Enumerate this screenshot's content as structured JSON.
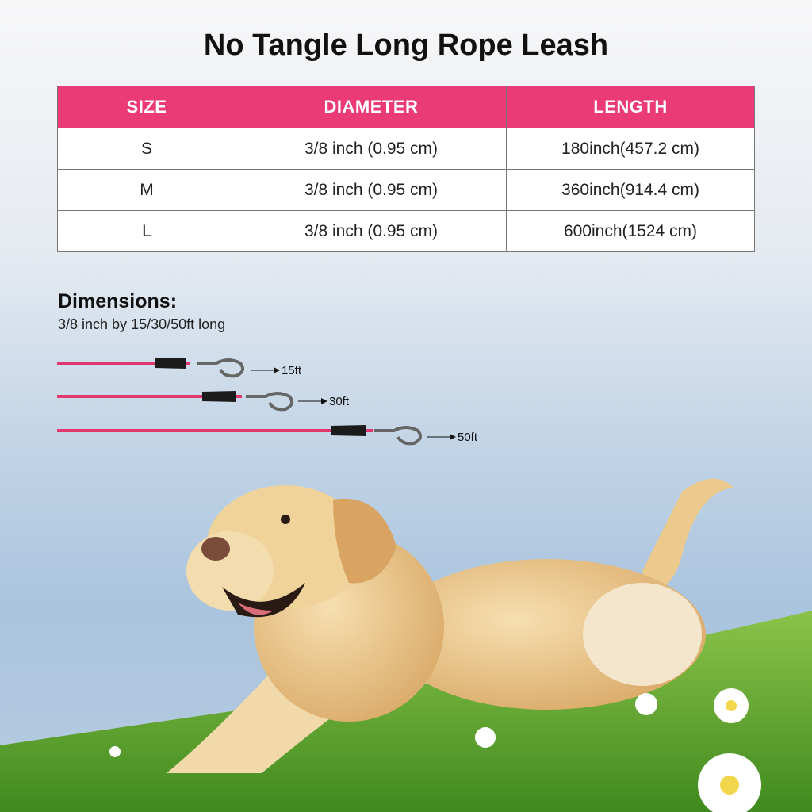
{
  "header": {
    "title": "No Tangle Long Rope Leash"
  },
  "table": {
    "columns": [
      "SIZE",
      "DIAMETER",
      "LENGTH"
    ],
    "rows": [
      [
        "S",
        "3/8 inch (0.95 cm)",
        "180inch(457.2 cm)"
      ],
      [
        "M",
        "3/8 inch (0.95 cm)",
        "360inch(914.4 cm)"
      ],
      [
        "L",
        "3/8 inch (0.95 cm)",
        "600inch(1524 cm)"
      ]
    ]
  },
  "dimensions": {
    "heading": "Dimensions:",
    "text": "3/8 inch by 15/30/50ft long",
    "leashes": [
      {
        "label": "15ft"
      },
      {
        "label": "30ft"
      },
      {
        "label": "50ft"
      }
    ]
  }
}
